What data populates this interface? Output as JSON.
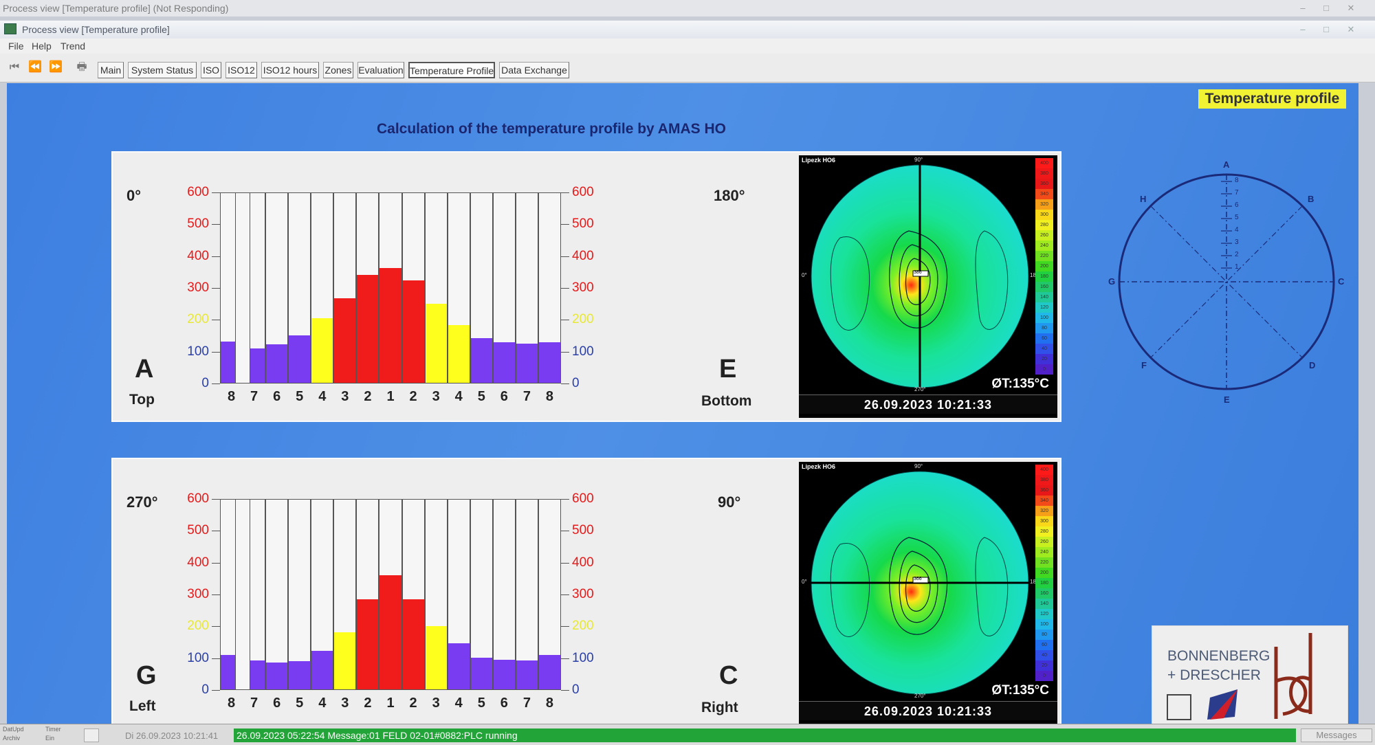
{
  "os_window": {
    "title": "Process view [Temperature profile] (Not Responding)"
  },
  "app_window": {
    "title": "Process view [Temperature profile]"
  },
  "menu": [
    "File",
    "Help",
    "Trend"
  ],
  "toolbar": {
    "tabs": [
      "Main",
      "System Status",
      "ISO",
      "ISO12",
      "ISO12 hours",
      "Zones",
      "Evaluation",
      "Temperature Profile",
      "Data Exchange"
    ],
    "active_tab": "Temperature Profile"
  },
  "page": {
    "label": "Temperature profile",
    "title": "Calculation of the temperature profile by AMAS HO"
  },
  "colors": {
    "red": "#f01c1c",
    "yellow": "#ffff1e",
    "purple": "#7a3cf0",
    "axis_red": "#e51a1a",
    "axis_yellow": "#e8e836",
    "background_blue": "#4a8be4"
  },
  "chart_data": [
    {
      "type": "bar",
      "title": "",
      "left_angle": "0°",
      "right_angle": "180°",
      "left_letter": "A",
      "left_label": "Top",
      "right_letter": "E",
      "right_label": "Bottom",
      "ylim": [
        0,
        600
      ],
      "yticks": [
        "600",
        "500",
        "400",
        "300",
        "200",
        "100",
        "0"
      ],
      "categories": [
        "8",
        "7",
        "6",
        "5",
        "4",
        "3",
        "2",
        "1",
        "2",
        "3",
        "4",
        "5",
        "6",
        "7",
        "8"
      ],
      "values": [
        130,
        108,
        120,
        148,
        202,
        265,
        338,
        360,
        322,
        248,
        182,
        140,
        128,
        122,
        128
      ],
      "colors": [
        "purple",
        "purple",
        "purple",
        "purple",
        "yellow",
        "red",
        "red",
        "red",
        "red",
        "yellow",
        "yellow",
        "purple",
        "purple",
        "purple",
        "purple"
      ]
    },
    {
      "type": "bar",
      "title": "",
      "left_angle": "270°",
      "right_angle": "90°",
      "left_letter": "G",
      "left_label": "Left",
      "right_letter": "C",
      "right_label": "Right",
      "ylim": [
        0,
        600
      ],
      "yticks": [
        "600",
        "500",
        "400",
        "300",
        "200",
        "100",
        "0"
      ],
      "categories": [
        "8",
        "7",
        "6",
        "5",
        "4",
        "3",
        "2",
        "1",
        "2",
        "3",
        "4",
        "5",
        "6",
        "7",
        "8"
      ],
      "values": [
        108,
        90,
        84,
        88,
        120,
        180,
        282,
        358,
        282,
        198,
        145,
        100,
        92,
        90,
        108
      ],
      "colors": [
        "purple",
        "purple",
        "purple",
        "purple",
        "purple",
        "yellow",
        "red",
        "red",
        "red",
        "yellow",
        "purple",
        "purple",
        "purple",
        "purple",
        "purple"
      ]
    }
  ],
  "thermal_images": [
    {
      "camera": "Lipezk HO6",
      "angle_top": "90°",
      "angle_bottom": "270°",
      "angle_left": "0°",
      "angle_right": "180°",
      "center_value": "386",
      "avg": "ØT:135°C",
      "timestamp": "26.09.2023 10:21:33",
      "crosshair": "vertical"
    },
    {
      "camera": "Lipezk HO6",
      "angle_top": "90°",
      "angle_bottom": "270°",
      "angle_left": "0°",
      "angle_right": "180°",
      "center_value": "366",
      "avg": "ØT:135°C",
      "timestamp": "26.09.2023 10:21:33",
      "crosshair": "horizontal"
    }
  ],
  "temp_scale": [
    "400",
    "380",
    "360",
    "340",
    "320",
    "300",
    "280",
    "260",
    "240",
    "220",
    "200",
    "180",
    "160",
    "140",
    "120",
    "100",
    "80",
    "60",
    "40",
    "20",
    "0"
  ],
  "compass": {
    "points": {
      "A": "A",
      "B": "B",
      "C": "C",
      "D": "D",
      "E": "E",
      "F": "F",
      "G": "G",
      "H": "H"
    },
    "ticks": [
      "8",
      "7",
      "6",
      "5",
      "4",
      "3",
      "2",
      "1"
    ]
  },
  "logo": {
    "line1": "BONNENBERG",
    "line2": "+ DRESCHER"
  },
  "statusbar": {
    "small1": "DatUpd",
    "small2": "Archiv",
    "small3": "Timer",
    "small4": "Ein",
    "date": "Di 26.09.2023 10:21:41",
    "message": "26.09.2023 05:22:54  Message:01 FELD     02-01#0882:PLC running",
    "messages_button": "Messages"
  }
}
